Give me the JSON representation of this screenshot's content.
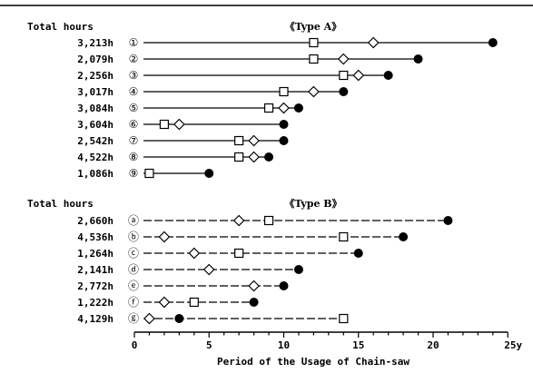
{
  "chart_data": {
    "type": "scatter",
    "xlabel": "Period of the Usage of Chain-saw",
    "x_unit": "y",
    "xlim": [
      0,
      25
    ],
    "x_ticks": [
      "0",
      "5",
      "10",
      "15",
      "20",
      "25y"
    ],
    "marker_order": [
      "square",
      "diamond",
      "filled-circle"
    ],
    "groups": [
      {
        "title": "《Type  A》",
        "hours_header": "Total hours",
        "line_style": "solid",
        "rows": [
          {
            "id": "①",
            "hours": "3,213h",
            "square": 12,
            "diamond": 16,
            "circle": 24
          },
          {
            "id": "②",
            "hours": "2,079h",
            "square": 12,
            "diamond": 14,
            "circle": 19
          },
          {
            "id": "③",
            "hours": "2,256h",
            "square": 14,
            "diamond": 15,
            "circle": 17
          },
          {
            "id": "④",
            "hours": "3,017h",
            "square": 10,
            "diamond": 12,
            "circle": 14
          },
          {
            "id": "⑤",
            "hours": "3,084h",
            "square": 9,
            "diamond": 10,
            "circle": 11
          },
          {
            "id": "⑥",
            "hours": "3,604h",
            "square": 2,
            "diamond": 3,
            "circle": 10
          },
          {
            "id": "⑦",
            "hours": "2,542h",
            "square": 7,
            "diamond": 8,
            "circle": 10
          },
          {
            "id": "⑧",
            "hours": "4,522h",
            "square": 7,
            "diamond": 8,
            "circle": 9
          },
          {
            "id": "⑨",
            "hours": "1,086h",
            "square": 1,
            "diamond": null,
            "circle": 5
          }
        ]
      },
      {
        "title": "《Type  B》",
        "hours_header": "Total hours",
        "line_style": "dashed",
        "rows": [
          {
            "id": "ⓐ",
            "hours": "2,660h",
            "square": 9,
            "diamond": 7,
            "circle": 21
          },
          {
            "id": "ⓑ",
            "hours": "4,536h",
            "square": 14,
            "diamond": 2,
            "circle": 18
          },
          {
            "id": "ⓒ",
            "hours": "1,264h",
            "square": 7,
            "diamond": 4,
            "circle": 15
          },
          {
            "id": "ⓓ",
            "hours": "2,141h",
            "square": null,
            "diamond": 5,
            "circle": 11
          },
          {
            "id": "ⓔ",
            "hours": "2,772h",
            "square": null,
            "diamond": 8,
            "circle": 10
          },
          {
            "id": "ⓕ",
            "hours": "1,222h",
            "square": 4,
            "diamond": 2,
            "circle": 8
          },
          {
            "id": "ⓖ",
            "hours": "4,129h",
            "square": 14,
            "diamond": 1,
            "circle": 3
          }
        ]
      }
    ]
  }
}
